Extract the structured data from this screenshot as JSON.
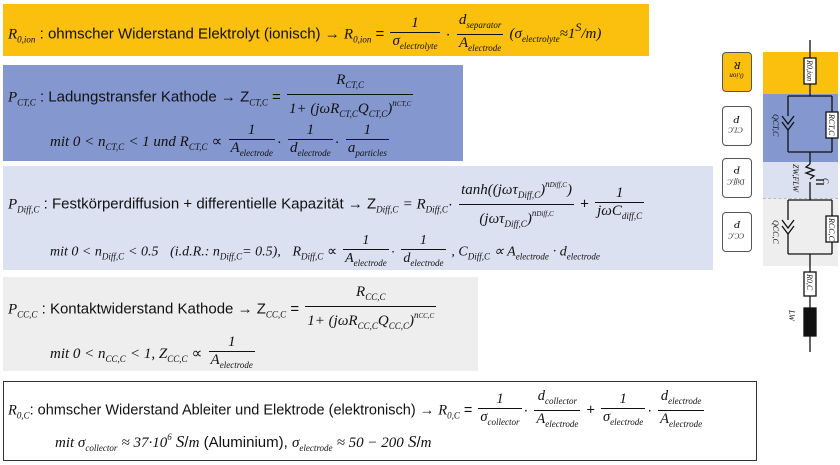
{
  "r0ion": {
    "symbol": "R",
    "symbol_sub": "0,ion",
    "text": ": ohmscher Widerstand Elektrolyt (ionisch)",
    "arrow": "→",
    "lhs": "R",
    "lhs_sub": "0,ion",
    "eq": "=",
    "frac1_num": "1",
    "frac1_den": "σ",
    "frac1_den_sub": "electrolyte",
    "dot": "·",
    "frac2_num": "d",
    "frac2_num_sub": "separator",
    "frac2_den": "A",
    "frac2_den_sub": "electrode",
    "note_open": "(σ",
    "note_sub": "electrolyte",
    "note_rest": "≈1",
    "note_s": "S",
    "note_m": "m",
    "note_close": ")"
  },
  "rct": {
    "symbol": "P",
    "symbol_sub": "CT,C",
    "text": ": Ladungstransfer Kathode",
    "arrow": "→",
    "lhs": "Z",
    "lhs_sub": "CT,C",
    "eq": "=",
    "num": "R",
    "num_sub": "CT,C",
    "den": "1+ (jωR",
    "den_sub1": "CT,C",
    "den_mid": "Q",
    "den_sub2": "CT,C",
    "den_close": ")",
    "den_sup": "n",
    "den_sup_sub": "CT,C",
    "cond": "mit 0 < n",
    "cond_sub": "CT,C",
    "cond_rest": "< 1 und R",
    "cond_sub2": "CT,C",
    "prop": "∝",
    "f1_num": "1",
    "f1_den": "A",
    "f1_den_sub": "electrode",
    "f2_num": "1",
    "f2_den": "d",
    "f2_den_sub": "electrode",
    "f3_num": "1",
    "f3_den": "a",
    "f3_den_sub": "particles"
  },
  "diff": {
    "symbol": "P",
    "symbol_sub": "Diff,C",
    "text": ": Festkörperdiffusion + differentielle Kapazität",
    "arrow": "→",
    "lhs": "Z",
    "lhs_sub": "Diff,C",
    "eq": "= R",
    "r_sub": "Diff,C",
    "num": "tanh((jωτ",
    "num_sub": "Diff,C",
    "num_close": ")",
    "num_sup": "n",
    "num_sup_sub": "Diff,C",
    "num_end": ")",
    "den": "(jωτ",
    "den_sub": "Diff,C",
    "den_close": ")",
    "den_sup": "n",
    "den_sup_sub": "Diff,C",
    "plus": "+",
    "f_num": "1",
    "f_den": "jωC",
    "f_den_sub": "diff,C",
    "cond": "mit 0 < n",
    "cond_sub": "Diff,C",
    "cond_rest": "< 0.5",
    "idr": "(i.d.R.: n",
    "idr_sub": "Diff,C",
    "idr_rest": "= 0.5),",
    "r2": "R",
    "r2_sub": "Diff,C",
    "prop": "∝",
    "g1_num": "1",
    "g1_den": "A",
    "g1_den_sub": "electrode",
    "g2_num": "1",
    "g2_den": "d",
    "g2_den_sub": "electrode",
    "c2": ",  C",
    "c2_sub": "Diff,C",
    "c2_rest": "∝ A",
    "c2_sub2": "electrode",
    "c2_dot": "· d",
    "c2_sub3": "electrode"
  },
  "rcc": {
    "symbol": "P",
    "symbol_sub": "CC,C",
    "text": ": Kontaktwiderstand Kathode",
    "arrow": "→",
    "lhs": "Z",
    "lhs_sub": "CC,C",
    "eq": "=",
    "num": "R",
    "num_sub": "CC,C",
    "den": "1+ (jωR",
    "den_sub1": "CC,C",
    "den_mid": "Q",
    "den_sub2": "CC,C",
    "den_close": ")",
    "den_sup": "n",
    "den_sup_sub": "CC,C",
    "cond": "mit 0 < n",
    "cond_sub": "CC,C",
    "cond_rest": "< 1,   Z",
    "cond_sub2": "CC,C",
    "prop": "∝",
    "f_num": "1",
    "f_den": "A",
    "f_den_sub": "electrode"
  },
  "r0c": {
    "symbol": "R",
    "symbol_sub": "0,C",
    "text": ": ohmscher Widerstand Ableiter und Elektrode (elektronisch)",
    "arrow": "→",
    "lhs": "R",
    "lhs_sub": "0,C",
    "eq": "=",
    "a_num": "1",
    "a_den": "σ",
    "a_den_sub": "collector",
    "b_num": "d",
    "b_num_sub": "collector",
    "b_den": "A",
    "b_den_sub": "electrode",
    "plus": "+",
    "c_num": "1",
    "c_den": "σ",
    "c_den_sub": "electrode",
    "d_num": "d",
    "d_num_sub": "electrode",
    "d_den": "A",
    "d_den_sub": "electrode",
    "cond_a": "mit σ",
    "cond_a_sub": "collector",
    "cond_a_rest": "≈ 37·10",
    "cond_a_sup": "6",
    "s1": "S",
    "m1": "m",
    "alu": "(Aluminium),",
    "cond_b": "σ",
    "cond_b_sub": "electrode",
    "cond_b_rest": "≈ 50 − 200",
    "s2": "S",
    "m2": "m"
  },
  "legend": {
    "r0ion": "R",
    "r0ion_sub": "0,ion",
    "pct": "P",
    "pct_sub": "CT,C",
    "pdiff": "P",
    "pdiff_sub": "Diff,C",
    "pcc": "P",
    "pcc_sub": "CC,C"
  },
  "circuit": {
    "r0ion": "R",
    "r0ion_sub": "0,ion",
    "rct": "R",
    "rct_sub": "CT,C",
    "qct": "Q",
    "qct_sub": "CT,C",
    "zw": "Z",
    "zw_sub": "W,FLW",
    "c": "C",
    "rcc": "R",
    "rcc_sub": "CC,C",
    "qcc": "Q",
    "qcc_sub": "CC,C",
    "r0c": "R",
    "r0c_sub": "0,C",
    "lw": "L",
    "lw_sub": "W"
  },
  "colors": {
    "yellow": "#fbbf0e",
    "blue": "#8497cf",
    "lightblue": "#dbe1f1",
    "grey": "#eeeeee"
  }
}
